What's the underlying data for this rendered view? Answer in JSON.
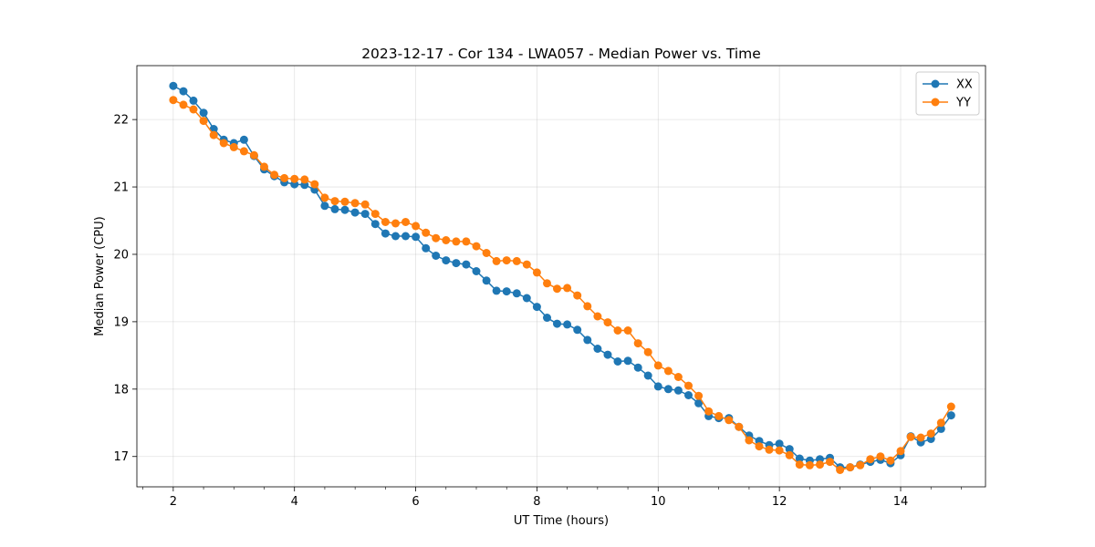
{
  "chart_data": {
    "type": "line",
    "title": "2023-12-17 - Cor 134 - LWA057 - Median Power vs. Time",
    "xlabel": "UT Time (hours)",
    "ylabel": "Median Power (CPU)",
    "xlim": [
      1.4,
      15.4
    ],
    "ylim": [
      16.55,
      22.8
    ],
    "xticks": [
      2,
      4,
      6,
      8,
      10,
      12,
      14
    ],
    "yticks": [
      17,
      18,
      19,
      20,
      21,
      22
    ],
    "xtick_labels": [
      "2",
      "4",
      "6",
      "8",
      "10",
      "12",
      "14"
    ],
    "ytick_labels": [
      "17",
      "18",
      "19",
      "20",
      "21",
      "22"
    ],
    "grid": true,
    "legend_position": "top-right",
    "x": [
      2.0,
      2.167,
      2.333,
      2.5,
      2.667,
      2.833,
      3.0,
      3.167,
      3.333,
      3.5,
      3.667,
      3.833,
      4.0,
      4.167,
      4.333,
      4.5,
      4.667,
      4.833,
      5.0,
      5.167,
      5.333,
      5.5,
      5.667,
      5.833,
      6.0,
      6.167,
      6.333,
      6.5,
      6.667,
      6.833,
      7.0,
      7.167,
      7.333,
      7.5,
      7.667,
      7.833,
      8.0,
      8.167,
      8.333,
      8.5,
      8.667,
      8.833,
      9.0,
      9.167,
      9.333,
      9.5,
      9.667,
      9.833,
      10.0,
      10.167,
      10.333,
      10.5,
      10.667,
      10.833,
      11.0,
      11.167,
      11.333,
      11.5,
      11.667,
      11.833,
      12.0,
      12.167,
      12.333,
      12.5,
      12.667,
      12.833,
      13.0,
      13.167,
      13.333,
      13.5,
      13.667,
      13.833,
      14.0,
      14.167,
      14.333,
      14.5,
      14.667,
      14.833
    ],
    "series": [
      {
        "name": "XX",
        "color": "#1f77b4",
        "values": [
          22.5,
          22.42,
          22.28,
          22.1,
          21.86,
          21.7,
          21.65,
          21.7,
          21.46,
          21.26,
          21.16,
          21.07,
          21.04,
          21.03,
          20.96,
          20.72,
          20.67,
          20.66,
          20.62,
          20.6,
          20.45,
          20.31,
          20.27,
          20.27,
          20.26,
          20.09,
          19.98,
          19.91,
          19.87,
          19.85,
          19.75,
          19.61,
          19.46,
          19.45,
          19.42,
          19.35,
          19.22,
          19.06,
          18.97,
          18.96,
          18.88,
          18.73,
          18.6,
          18.51,
          18.41,
          18.42,
          18.32,
          18.2,
          18.04,
          18.0,
          17.98,
          17.91,
          17.79,
          17.6,
          17.57,
          17.57,
          17.44,
          17.31,
          17.23,
          17.17,
          17.19,
          17.11,
          16.97,
          16.94,
          16.96,
          16.98,
          16.84,
          16.84,
          16.88,
          16.92,
          16.95,
          16.9,
          17.02,
          17.3,
          17.21,
          17.26,
          17.41,
          17.61
        ]
      },
      {
        "name": "YY",
        "color": "#ff7f0e",
        "values": [
          22.29,
          22.22,
          22.15,
          21.98,
          21.77,
          21.65,
          21.59,
          21.53,
          21.47,
          21.3,
          21.18,
          21.13,
          21.12,
          21.11,
          21.04,
          20.84,
          20.79,
          20.78,
          20.76,
          20.74,
          20.6,
          20.48,
          20.46,
          20.48,
          20.42,
          20.32,
          20.24,
          20.21,
          20.19,
          20.19,
          20.12,
          20.02,
          19.9,
          19.91,
          19.9,
          19.85,
          19.73,
          19.57,
          19.49,
          19.5,
          19.39,
          19.23,
          19.08,
          18.99,
          18.87,
          18.87,
          18.68,
          18.55,
          18.35,
          18.27,
          18.18,
          18.05,
          17.9,
          17.67,
          17.6,
          17.54,
          17.44,
          17.24,
          17.15,
          17.1,
          17.09,
          17.02,
          16.88,
          16.87,
          16.88,
          16.92,
          16.8,
          16.84,
          16.87,
          16.96,
          17.0,
          16.94,
          17.08,
          17.29,
          17.28,
          17.34,
          17.5,
          17.74
        ]
      }
    ]
  }
}
